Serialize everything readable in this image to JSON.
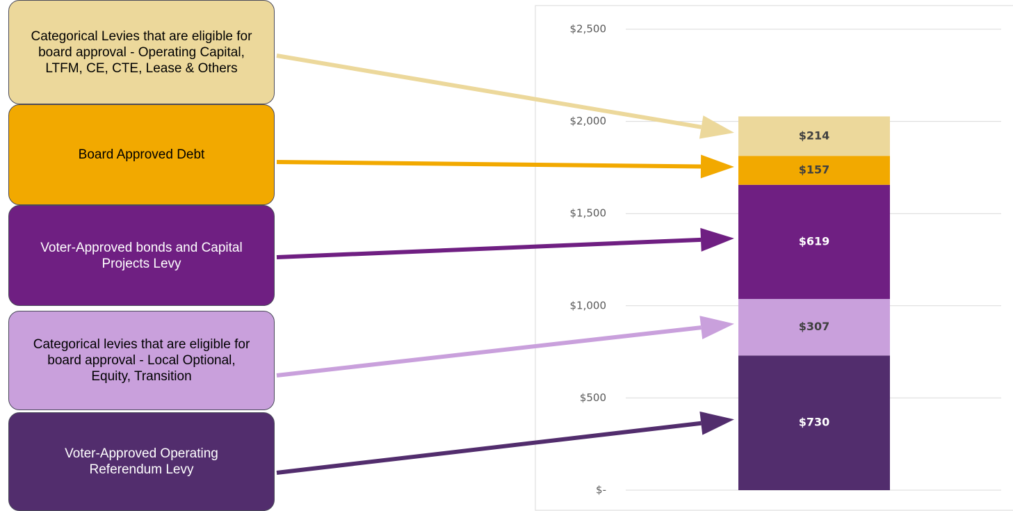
{
  "chart_data": {
    "type": "stacked_bar",
    "categories": [
      null
    ],
    "series": [
      {
        "name": "Voter-Approved Operating Referendum Levy",
        "color": "#522d6d",
        "values": [
          730
        ],
        "value_labels": [
          "$730"
        ]
      },
      {
        "name": "Categorical levies that are eligible for board approval - Local Optional, Equity, Transition",
        "color": "#c9a0dc",
        "values": [
          307
        ],
        "value_labels": [
          "$307"
        ]
      },
      {
        "name": "Voter-Approved bonds and Capital Projects Levy",
        "color": "#6f1f82",
        "values": [
          619
        ],
        "value_labels": [
          "$619"
        ]
      },
      {
        "name": "Board Approved Debt",
        "color": "#f2a900",
        "values": [
          157
        ],
        "value_labels": [
          "$157"
        ]
      },
      {
        "name": "Categorical Levies that are eligible for board approval - Operating Capital, LTFM, CE, CTE, Lease & Others",
        "color": "#ecd89b",
        "values": [
          214
        ],
        "value_labels": [
          "$214"
        ]
      }
    ],
    "ylim": [
      0,
      2500
    ],
    "yticks": [
      {
        "value": 0,
        "label": "$-"
      },
      {
        "value": 500,
        "label": "$500"
      },
      {
        "value": 1000,
        "label": "$1,000"
      },
      {
        "value": 1500,
        "label": "$1,500"
      },
      {
        "value": 2000,
        "label": "$2,000"
      },
      {
        "value": 2500,
        "label": "$2,500"
      }
    ],
    "grid": true
  }
}
